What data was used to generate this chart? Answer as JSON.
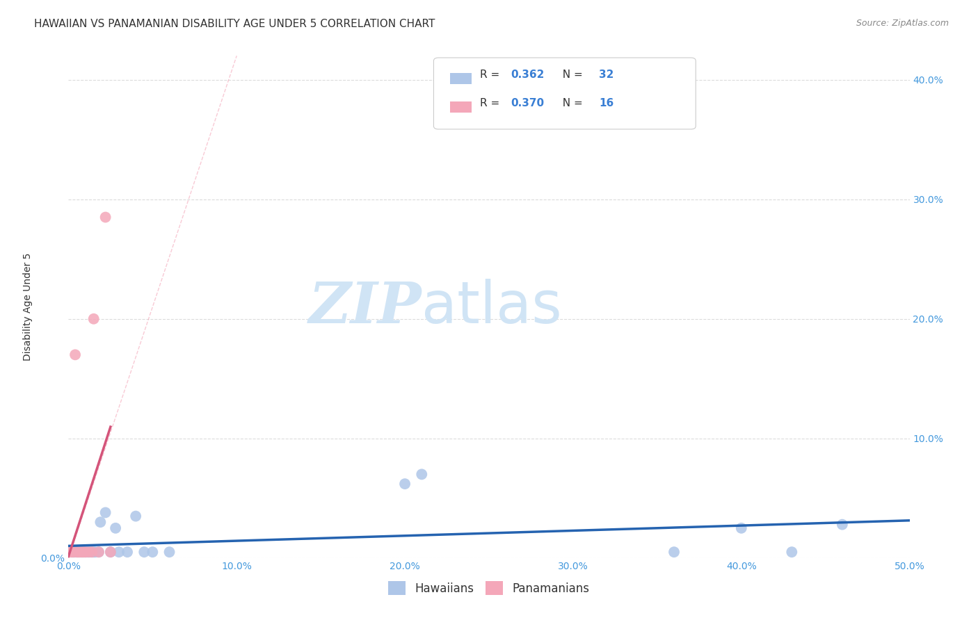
{
  "title": "HAWAIIAN VS PANAMANIAN DISABILITY AGE UNDER 5 CORRELATION CHART",
  "source": "Source: ZipAtlas.com",
  "ylabel": "Disability Age Under 5",
  "xlim": [
    0.0,
    0.5
  ],
  "ylim": [
    0.0,
    0.42
  ],
  "xticks": [
    0.0,
    0.1,
    0.2,
    0.3,
    0.4,
    0.5
  ],
  "yticks": [
    0.0,
    0.1,
    0.2,
    0.3,
    0.4
  ],
  "xticklabels": [
    "0.0%",
    "10.0%",
    "20.0%",
    "30.0%",
    "40.0%",
    "50.0%"
  ],
  "yticklabels_left": [
    "0.0%",
    "",
    "",
    "",
    ""
  ],
  "yticklabels_right": [
    "",
    "10.0%",
    "20.0%",
    "30.0%",
    "40.0%"
  ],
  "hawaiian_R": 0.362,
  "hawaiian_N": 32,
  "panamanian_R": 0.37,
  "panamanian_N": 16,
  "hawaiian_color": "#aec6e8",
  "hawaiian_line_color": "#2563b0",
  "panamanian_color": "#f4a7b9",
  "panamanian_line_color": "#d4547a",
  "ref_line_color": "#f4a7b9",
  "watermark_zip": "ZIP",
  "watermark_atlas": "atlas",
  "watermark_color": "#d0e4f5",
  "grid_color": "#cccccc",
  "hawaiian_x": [
    0.002,
    0.003,
    0.004,
    0.005,
    0.006,
    0.007,
    0.008,
    0.009,
    0.01,
    0.011,
    0.012,
    0.013,
    0.014,
    0.015,
    0.016,
    0.018,
    0.019,
    0.022,
    0.025,
    0.028,
    0.03,
    0.035,
    0.04,
    0.045,
    0.05,
    0.06,
    0.2,
    0.21,
    0.36,
    0.4,
    0.43,
    0.46
  ],
  "hawaiian_y": [
    0.005,
    0.005,
    0.005,
    0.005,
    0.005,
    0.005,
    0.005,
    0.005,
    0.005,
    0.005,
    0.005,
    0.005,
    0.005,
    0.005,
    0.005,
    0.005,
    0.03,
    0.038,
    0.005,
    0.025,
    0.005,
    0.005,
    0.035,
    0.005,
    0.005,
    0.005,
    0.062,
    0.07,
    0.005,
    0.025,
    0.005,
    0.028
  ],
  "panamanian_x": [
    0.001,
    0.002,
    0.003,
    0.004,
    0.005,
    0.006,
    0.007,
    0.008,
    0.009,
    0.01,
    0.012,
    0.014,
    0.015,
    0.018,
    0.022,
    0.025
  ],
  "panamanian_y": [
    0.005,
    0.005,
    0.005,
    0.17,
    0.005,
    0.005,
    0.005,
    0.005,
    0.005,
    0.005,
    0.005,
    0.005,
    0.2,
    0.005,
    0.285,
    0.005
  ],
  "background_color": "#ffffff",
  "title_fontsize": 11,
  "axis_label_fontsize": 10,
  "tick_fontsize": 10,
  "scatter_size": 130
}
